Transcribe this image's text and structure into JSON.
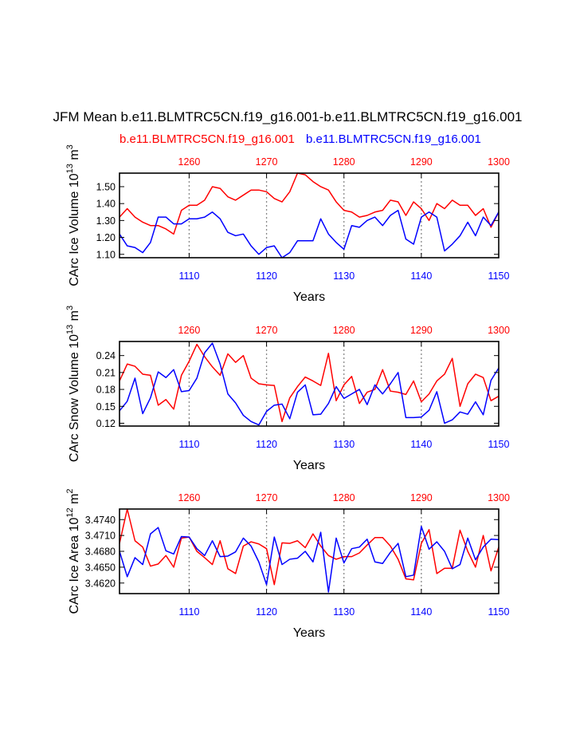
{
  "title": "JFM Mean b.e11.BLMTRC5CN.f19_g16.001-b.e11.BLMTRC5CN.f19_g16.001",
  "legend": {
    "red_case": "b.e11.BLMTRC5CN.f19_g16.001",
    "blue_case": "b.e11.BLMTRC5CN.f19_g16.001"
  },
  "colors": {
    "red": "#ff0000",
    "blue": "#0000ff",
    "grid": "#888888"
  },
  "chart_data": [
    {
      "type": "line",
      "name": "ice-volume",
      "title": "",
      "xlabel": "Years",
      "ylabel": "CArc Ice Volume 10",
      "ylabel_exp": "13",
      "ylabel_unit": "m",
      "ylabel_unit_exp": "3",
      "x_bottom": {
        "range": [
          1101,
          1150
        ],
        "ticks": [
          "1110",
          "1120",
          "1130",
          "1140",
          "1150"
        ],
        "tick_values": [
          1110,
          1120,
          1130,
          1140,
          1150
        ]
      },
      "x_top": {
        "range": [
          1251,
          1300
        ],
        "ticks": [
          "1260",
          "1270",
          "1280",
          "1290",
          "1300"
        ],
        "tick_values": [
          1260,
          1270,
          1280,
          1290,
          1300
        ]
      },
      "ylim": [
        1.08,
        1.58
      ],
      "yticks": [
        "1.10",
        "1.20",
        "1.30",
        "1.40",
        "1.50"
      ],
      "ytick_values": [
        1.1,
        1.2,
        1.3,
        1.4,
        1.5
      ],
      "series": [
        {
          "name": "red",
          "axis": "top",
          "values": [
            1.32,
            1.37,
            1.32,
            1.29,
            1.27,
            1.27,
            1.25,
            1.22,
            1.36,
            1.39,
            1.39,
            1.42,
            1.5,
            1.49,
            1.44,
            1.42,
            1.45,
            1.48,
            1.48,
            1.47,
            1.43,
            1.41,
            1.47,
            1.58,
            1.57,
            1.53,
            1.5,
            1.48,
            1.41,
            1.36,
            1.35,
            1.32,
            1.33,
            1.35,
            1.36,
            1.42,
            1.41,
            1.33,
            1.41,
            1.37,
            1.3,
            1.4,
            1.37,
            1.42,
            1.39,
            1.39,
            1.33,
            1.37,
            1.26,
            1.35
          ]
        },
        {
          "name": "blue",
          "axis": "bottom",
          "values": [
            1.22,
            1.15,
            1.14,
            1.11,
            1.17,
            1.32,
            1.32,
            1.28,
            1.28,
            1.31,
            1.31,
            1.32,
            1.35,
            1.31,
            1.23,
            1.21,
            1.22,
            1.15,
            1.1,
            1.14,
            1.15,
            1.08,
            1.11,
            1.18,
            1.18,
            1.18,
            1.31,
            1.22,
            1.17,
            1.13,
            1.27,
            1.26,
            1.3,
            1.32,
            1.27,
            1.33,
            1.36,
            1.19,
            1.16,
            1.32,
            1.35,
            1.32,
            1.12,
            1.16,
            1.21,
            1.29,
            1.21,
            1.32,
            1.27,
            1.35
          ]
        }
      ]
    },
    {
      "type": "line",
      "name": "snow-volume",
      "title": "",
      "xlabel": "Years",
      "ylabel": "CArc Snow Volume 10",
      "ylabel_exp": "13",
      "ylabel_unit": "m",
      "ylabel_unit_exp": "3",
      "x_bottom": {
        "range": [
          1101,
          1150
        ],
        "ticks": [
          "1110",
          "1120",
          "1130",
          "1140",
          "1150"
        ],
        "tick_values": [
          1110,
          1120,
          1130,
          1140,
          1150
        ]
      },
      "x_top": {
        "range": [
          1251,
          1300
        ],
        "ticks": [
          "1260",
          "1270",
          "1280",
          "1290",
          "1300"
        ],
        "tick_values": [
          1260,
          1270,
          1280,
          1290,
          1300
        ]
      },
      "ylim": [
        0.115,
        0.265
      ],
      "yticks": [
        "0.12",
        "0.15",
        "0.18",
        "0.21",
        "0.24"
      ],
      "ytick_values": [
        0.12,
        0.15,
        0.18,
        0.21,
        0.24
      ],
      "series": [
        {
          "name": "red",
          "axis": "top",
          "values": [
            0.195,
            0.225,
            0.221,
            0.207,
            0.205,
            0.152,
            0.162,
            0.145,
            0.205,
            0.23,
            0.26,
            0.238,
            0.22,
            0.205,
            0.243,
            0.228,
            0.24,
            0.2,
            0.19,
            0.188,
            0.187,
            0.123,
            0.165,
            0.185,
            0.202,
            0.195,
            0.187,
            0.244,
            0.16,
            0.188,
            0.203,
            0.155,
            0.175,
            0.18,
            0.215,
            0.177,
            0.175,
            0.171,
            0.195,
            0.158,
            0.172,
            0.195,
            0.207,
            0.235,
            0.15,
            0.19,
            0.207,
            0.201,
            0.16,
            0.168
          ]
        },
        {
          "name": "blue",
          "axis": "bottom",
          "values": [
            0.142,
            0.159,
            0.2,
            0.137,
            0.165,
            0.211,
            0.201,
            0.215,
            0.176,
            0.178,
            0.2,
            0.245,
            0.262,
            0.225,
            0.172,
            0.156,
            0.134,
            0.123,
            0.117,
            0.141,
            0.152,
            0.154,
            0.128,
            0.175,
            0.188,
            0.135,
            0.136,
            0.155,
            0.185,
            0.164,
            0.172,
            0.18,
            0.153,
            0.188,
            0.172,
            0.19,
            0.21,
            0.13,
            0.13,
            0.131,
            0.143,
            0.176,
            0.12,
            0.126,
            0.14,
            0.136,
            0.158,
            0.135,
            0.196,
            0.218
          ]
        }
      ]
    },
    {
      "type": "line",
      "name": "ice-area",
      "title": "",
      "xlabel": "Years",
      "ylabel": "CArc Ice Area 10",
      "ylabel_exp": "12",
      "ylabel_unit": "m",
      "ylabel_unit_exp": "2",
      "x_bottom": {
        "range": [
          1101,
          1150
        ],
        "ticks": [
          "1110",
          "1120",
          "1130",
          "1140",
          "1150"
        ],
        "tick_values": [
          1110,
          1120,
          1130,
          1140,
          1150
        ]
      },
      "x_top": {
        "range": [
          1251,
          1300
        ],
        "ticks": [
          "1260",
          "1270",
          "1280",
          "1290",
          "1300"
        ],
        "tick_values": [
          1260,
          1270,
          1280,
          1290,
          1300
        ]
      },
      "ylim": [
        3.46,
        3.476
      ],
      "yticks": [
        "3.4620",
        "3.4650",
        "3.4680",
        "3.4710",
        "3.4740"
      ],
      "ytick_values": [
        3.462,
        3.465,
        3.468,
        3.471,
        3.474
      ],
      "series": [
        {
          "name": "red",
          "axis": "top",
          "values": [
            3.4695,
            3.476,
            3.47,
            3.4688,
            3.4652,
            3.4656,
            3.4672,
            3.465,
            3.4705,
            3.4707,
            3.468,
            3.4668,
            3.4655,
            3.47,
            3.4647,
            3.4638,
            3.469,
            3.4698,
            3.4694,
            3.4685,
            3.4617,
            3.4696,
            3.4695,
            3.47,
            3.4687,
            3.4713,
            3.469,
            3.4672,
            3.4665,
            3.467,
            3.467,
            3.4677,
            3.4692,
            3.4706,
            3.4706,
            3.469,
            3.4665,
            3.4628,
            3.4626,
            3.4695,
            3.4721,
            3.4638,
            3.4648,
            3.4648,
            3.472,
            3.468,
            3.465,
            3.471,
            3.4643,
            3.4688
          ]
        },
        {
          "name": "blue",
          "axis": "bottom",
          "values": [
            3.468,
            3.4632,
            3.4668,
            3.4655,
            3.4713,
            3.4725,
            3.4681,
            3.4675,
            3.4708,
            3.4707,
            3.4685,
            3.4672,
            3.47,
            3.467,
            3.4671,
            3.4679,
            3.4705,
            3.469,
            3.466,
            3.4617,
            3.4707,
            3.4655,
            3.4665,
            3.4667,
            3.468,
            3.466,
            3.4716,
            3.4603,
            3.4705,
            3.4658,
            3.4685,
            3.4688,
            3.4703,
            3.466,
            3.4657,
            3.4678,
            3.4695,
            3.4632,
            3.4635,
            3.4727,
            3.4684,
            3.4698,
            3.468,
            3.4647,
            3.4655,
            3.4705,
            3.4664,
            3.4688,
            3.4703,
            3.4702
          ]
        }
      ]
    }
  ]
}
